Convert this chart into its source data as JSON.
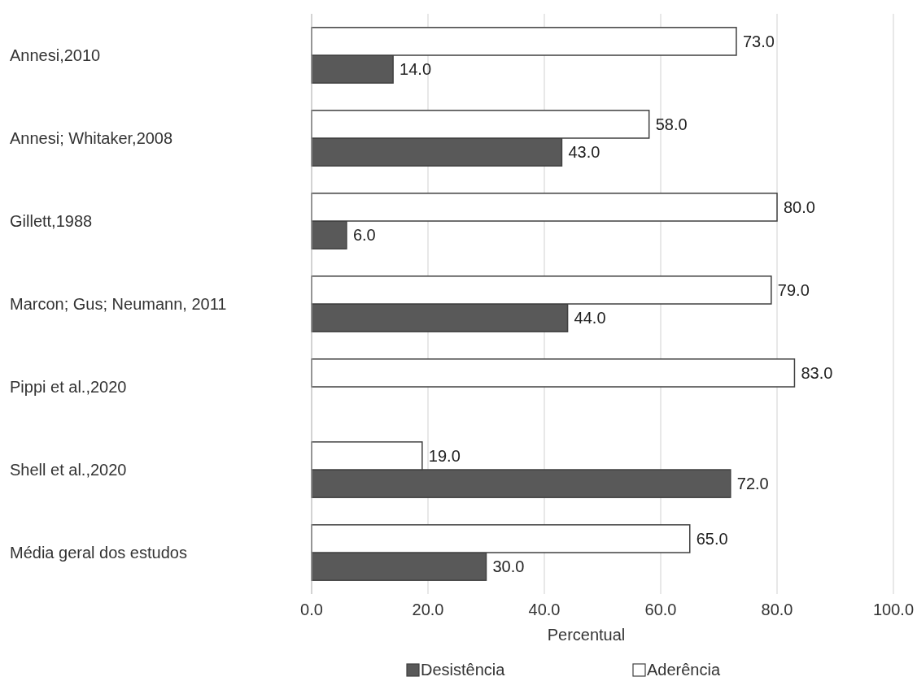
{
  "chart_data": {
    "type": "bar",
    "orientation": "horizontal",
    "xlabel": "Percentual",
    "categories": [
      "Annesi,2010",
      "Annesi; Whitaker,2008",
      "Gillett,1988",
      "Marcon; Gus; Neumann, 2011",
      "Pippi et al.,2020",
      "Shell et al.,2020",
      "Média geral dos estudos"
    ],
    "series": [
      {
        "name": "Desistência",
        "color": "#595959",
        "values": [
          14,
          43,
          6,
          44,
          0,
          72,
          30
        ],
        "value_labels": [
          "14.0",
          "43.0",
          "6.0",
          "44.0",
          null,
          "72.0",
          "30.0"
        ]
      },
      {
        "name": "Aderência",
        "color": "#ffffff",
        "values": [
          73,
          58,
          80,
          79,
          83,
          19,
          65
        ],
        "value_labels": [
          "73.0",
          "58.0",
          "80.0",
          "79.0",
          "83.0",
          "19.0",
          "65.0"
        ]
      }
    ],
    "xlim": [
      0,
      100
    ],
    "xticks": [
      {
        "value": 0,
        "label": "0.0"
      },
      {
        "value": 20,
        "label": "20.0"
      },
      {
        "value": 40,
        "label": "40.0"
      },
      {
        "value": 60,
        "label": "60.0"
      },
      {
        "value": 80,
        "label": "80.0"
      },
      {
        "value": 100,
        "label": "100.0"
      }
    ],
    "grid": "x",
    "legend": "bottom"
  }
}
